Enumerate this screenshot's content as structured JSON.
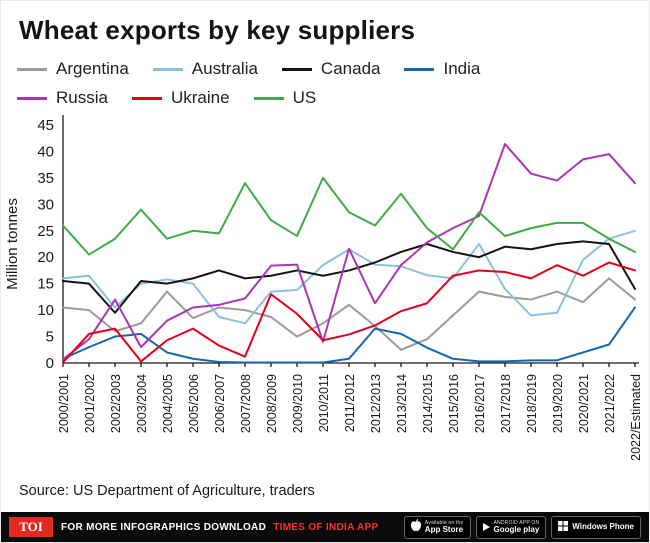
{
  "chart_data": {
    "type": "line",
    "title": "Wheat exports by key suppliers",
    "ylabel": "Million tonnes",
    "xlabel": "",
    "ylim": [
      0,
      45
    ],
    "yticks": [
      0,
      5,
      10,
      15,
      20,
      25,
      30,
      35,
      40,
      45
    ],
    "grid": false,
    "legend_position": "top",
    "categories": [
      "2000/2001",
      "2001/2002",
      "2002/2003",
      "2003/2004",
      "2004/2005",
      "2005/2006",
      "2006/2007",
      "2007/2008",
      "2008/2009",
      "2009/2010",
      "2010/2011",
      "2011/2012",
      "2012/2013",
      "2013/2014",
      "2014/2015",
      "2015/2016",
      "2016/2017",
      "2017/2018",
      "2018/2019",
      "2019/2020",
      "2020/2021",
      "2021/2022",
      "2022/Estimated"
    ],
    "series": [
      {
        "name": "Argentina",
        "color": "#9b9b9b",
        "values": [
          10.5,
          10,
          6,
          7.5,
          13.5,
          8.5,
          10.5,
          10,
          8.7,
          5,
          7.5,
          11,
          7,
          2.5,
          4.5,
          9,
          13.5,
          12.5,
          12,
          13.5,
          11.5,
          16,
          12
        ]
      },
      {
        "name": "Australia",
        "color": "#8cc2dd",
        "values": [
          16,
          16.5,
          10.5,
          15,
          15.8,
          15,
          8.7,
          7.5,
          13.5,
          13.8,
          18.5,
          21.5,
          18.6,
          18.3,
          16.6,
          16,
          22.5,
          14,
          9,
          9.5,
          19.5,
          23.5,
          25
        ]
      },
      {
        "name": "Canada",
        "color": "#141414",
        "values": [
          15.5,
          15,
          9.5,
          15.5,
          15,
          16,
          17.5,
          16,
          16.5,
          17.5,
          16.5,
          17.5,
          19,
          21,
          22.5,
          21,
          20,
          22,
          21.5,
          22.5,
          23,
          22.5,
          14
        ]
      },
      {
        "name": "India",
        "color": "#1567a9",
        "values": [
          0.8,
          3,
          5,
          5.5,
          2,
          0.8,
          0.2,
          0.1,
          0.1,
          0.1,
          0.1,
          0.8,
          6.5,
          5.5,
          2.9,
          0.8,
          0.3,
          0.3,
          0.5,
          0.5,
          2,
          3.5,
          10.5
        ]
      },
      {
        "name": "Russia",
        "color": "#ab35b5",
        "values": [
          0.7,
          4.5,
          12,
          3,
          8,
          10.5,
          11,
          12.2,
          18.4,
          18.6,
          4,
          21.6,
          11.3,
          18.5,
          22.8,
          25.5,
          27.8,
          41.4,
          35.8,
          34.5,
          38.5,
          39.5,
          34
        ]
      },
      {
        "name": "Ukraine",
        "color": "#e3001b",
        "values": [
          0.1,
          5.5,
          6.5,
          0.3,
          4.3,
          6.5,
          3.3,
          1.2,
          13,
          9.3,
          4.3,
          5.4,
          7.1,
          9.8,
          11.3,
          16.5,
          17.5,
          17.2,
          16,
          18.5,
          16.5,
          19,
          17.5
        ]
      },
      {
        "name": "US",
        "color": "#3faa47",
        "values": [
          26,
          20.5,
          23.5,
          29,
          23.5,
          25,
          24.5,
          34,
          27,
          24,
          35,
          28.5,
          26,
          32,
          25.5,
          21.5,
          28.5,
          24,
          25.5,
          26.5,
          26.5,
          23.5,
          21
        ]
      }
    ]
  },
  "source": "Source: US Department of Agriculture, traders",
  "footer": {
    "logo_text": "TOI",
    "message_prefix": "FOR MORE INFOGRAPHICS DOWNLOAD",
    "message_highlight": "TIMES OF INDIA APP",
    "badges": [
      {
        "line1": "Available on the",
        "line2": "App Store"
      },
      {
        "line1": "ANDROID APP ON",
        "line2": "Google play"
      },
      {
        "line1": "",
        "line2": "Windows Phone"
      }
    ]
  }
}
